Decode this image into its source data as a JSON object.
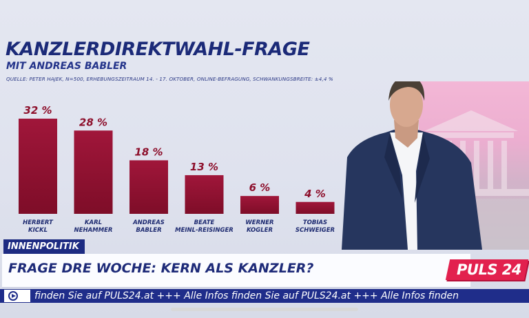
{
  "title": "KANZLERDIREKTWAHL-FRAGE",
  "subtitle": "MIT ANDREAS BABLER",
  "source": "QUELLE: PETER HAJEK, N=500, ERHEBUNGSZEITRAUM 14. - 17. OKTOBER, ONLINE-BEFRAGUNG, SCHWANKUNGSBREITE: ±4,4 %",
  "chart_data": {
    "type": "bar",
    "title": "KANZLERDIREKTWAHL-FRAGE",
    "subtitle": "MIT ANDREAS BABLER",
    "categories": [
      [
        "HERBERT",
        "KICKL"
      ],
      [
        "KARL",
        "NEHAMMER"
      ],
      [
        "ANDREAS",
        "BABLER"
      ],
      [
        "BEATE",
        "MEINL-REISINGER"
      ],
      [
        "WERNER",
        "KOGLER"
      ],
      [
        "TOBIAS",
        "SCHWEIGER"
      ]
    ],
    "values": [
      32,
      28,
      18,
      13,
      6,
      4
    ],
    "value_labels": [
      "32 %",
      "28 %",
      "18 %",
      "13 %",
      "6 %",
      "4 %"
    ],
    "unit": "%",
    "bar_color": "#9b1232",
    "grid": false,
    "legend": "none"
  },
  "photo": {
    "description_icon": "person-photo"
  },
  "lower_third": {
    "tag": "INNENPOLITIK",
    "headline": "FRAGE DRE WOCHE: KERN ALS KANZLER?",
    "brand": "PULS 24",
    "ticker": "finden Sie auf PULS24.at +++ Alle Infos finden Sie auf PULS24.at +++ Alle Infos finden"
  },
  "colors": {
    "accent": "#1d2a78",
    "bar": "#9b1232",
    "brand": "#e2214e",
    "ticker": "#1f2d8a"
  }
}
